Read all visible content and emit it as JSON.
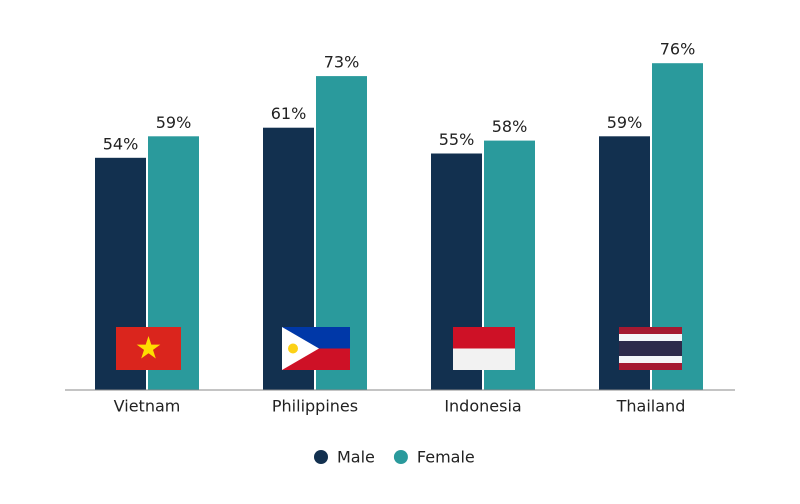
{
  "chart_data": {
    "type": "bar",
    "categories": [
      "Vietnam",
      "Philippines",
      "Indonesia",
      "Thailand"
    ],
    "series": [
      {
        "name": "Male",
        "color": "#12304f",
        "values": [
          54,
          61,
          55,
          59
        ],
        "value_labels": [
          "54%",
          "61%",
          "55%",
          "59%"
        ]
      },
      {
        "name": "Female",
        "color": "#2a9a9c",
        "values": [
          59,
          73,
          58,
          76
        ],
        "value_labels": [
          "59%",
          "73%",
          "58%",
          "76%"
        ]
      }
    ]
  }
}
